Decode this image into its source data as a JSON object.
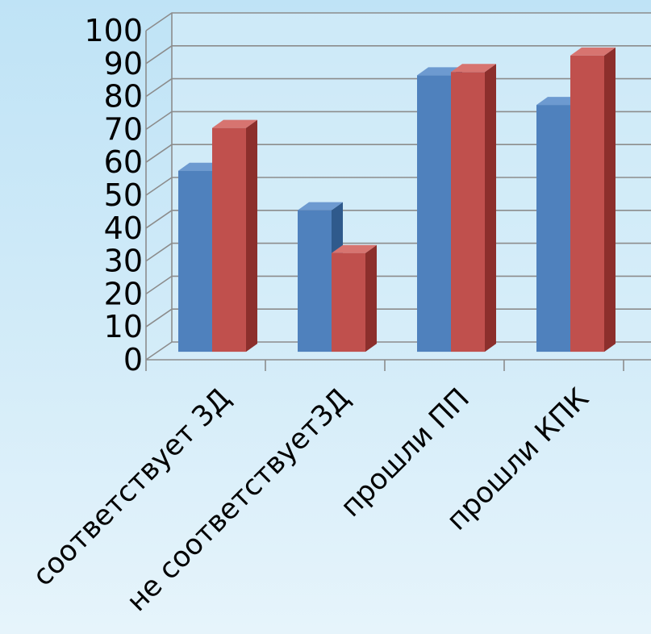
{
  "chart_data": {
    "type": "bar",
    "categories": [
      "соответствует 3Д",
      "не соответствует3Д",
      "прошли ПП",
      "прошли КПК"
    ],
    "series": [
      {
        "values": [
          55,
          43,
          84,
          75
        ]
      },
      {
        "values": [
          68,
          30,
          85,
          90
        ]
      }
    ],
    "ylim": [
      0,
      100
    ],
    "yticks": [
      "0",
      "10",
      "20",
      "30",
      "40",
      "50",
      "60",
      "70",
      "80",
      "90",
      "100"
    ],
    "grid": true,
    "three_d": true,
    "colors": {
      "series_front": [
        "#4f81bd",
        "#c0504d"
      ],
      "series_top": [
        "#6d9ad0",
        "#d77470"
      ],
      "series_side": [
        "#2f5a8c",
        "#8c2f2c"
      ],
      "grid": "#8c8c8c",
      "wall": "#d8eef9"
    }
  }
}
